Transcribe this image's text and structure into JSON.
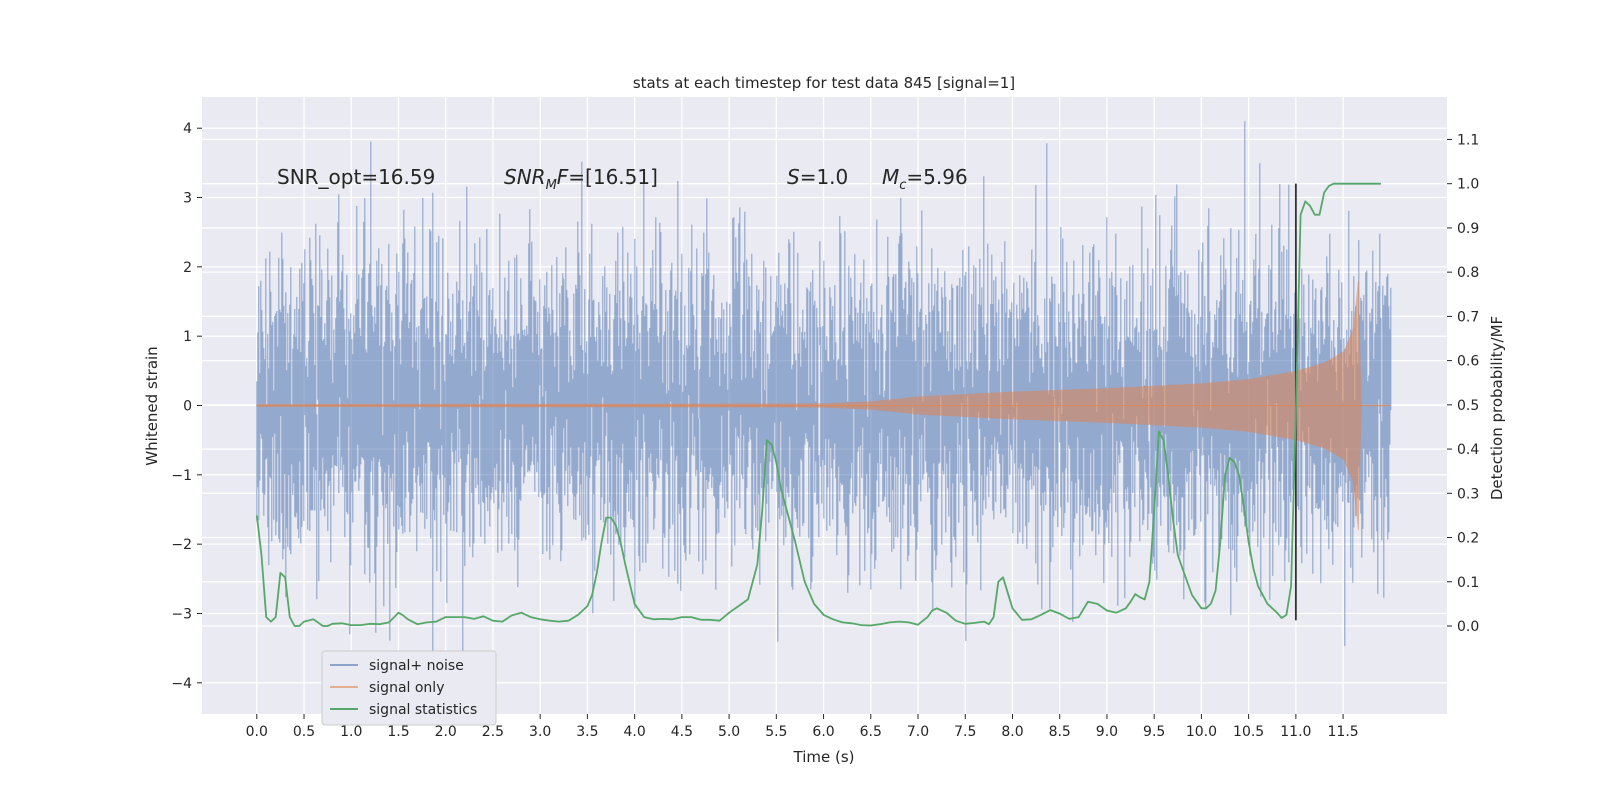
{
  "chart_data": {
    "type": "line",
    "title": "stats at each timestep for test data 845 [signal=1]",
    "xlabel": "Time (s)",
    "ylabel": "Whitened strain",
    "ylabel_right": "Detection probability/MF",
    "xlim": [
      -0.58,
      12.6
    ],
    "ylim": [
      -4.45,
      4.45
    ],
    "ylim_right": [
      -0.199,
      1.196
    ],
    "x_ticks": [
      0.0,
      0.5,
      1.0,
      1.5,
      2.0,
      2.5,
      3.0,
      3.5,
      4.0,
      4.5,
      5.0,
      5.5,
      6.0,
      6.5,
      7.0,
      7.5,
      8.0,
      8.5,
      9.0,
      9.5,
      10.0,
      10.5,
      11.0,
      11.5
    ],
    "x_tick_labels": [
      "0.0",
      "0.5",
      "1.0",
      "1.5",
      "2.0",
      "2.5",
      "3.0",
      "3.5",
      "4.0",
      "4.5",
      "5.0",
      "5.5",
      "6.0",
      "6.5",
      "7.0",
      "7.5",
      "8.0",
      "8.5",
      "9.0",
      "9.5",
      "10.0",
      "10.5",
      "11.0",
      "11.5"
    ],
    "y_ticks": [
      -4,
      -3,
      -2,
      -1,
      0,
      1,
      2,
      3,
      4
    ],
    "y_tick_labels": [
      "−4",
      "−3",
      "−2",
      "−1",
      "0",
      "1",
      "2",
      "3",
      "4"
    ],
    "y_ticks_right": [
      0.0,
      0.1,
      0.2,
      0.3,
      0.4,
      0.5,
      0.6,
      0.7,
      0.8,
      0.9,
      1.0,
      1.1
    ],
    "y_tick_labels_right": [
      "0.0",
      "0.1",
      "0.2",
      "0.3",
      "0.4",
      "0.5",
      "0.6",
      "0.7",
      "0.8",
      "0.9",
      "1.0",
      "1.1"
    ],
    "annotations": [
      {
        "label": "SNR_opt=16.59",
        "x": 0.2,
        "y": 3.3
      },
      {
        "label": "SNR_MF=[16.51]",
        "x": 2.62,
        "y": 3.3
      },
      {
        "label": "S=1.0",
        "x": 5.6,
        "y": 3.3
      },
      {
        "label": "M_c=5.96",
        "x": 6.6,
        "y": 3.3
      }
    ],
    "vertical_marker": {
      "x": 11.0,
      "y_range": [
        -3.1,
        3.2
      ],
      "color": "#333333"
    },
    "series": [
      {
        "name": "signal+ noise",
        "color": "#4c72b0",
        "opacity": 0.5,
        "description": "whitened noisy strain, approximately N(0,1) on [0, 12]",
        "t_range": [
          0.0,
          12.0
        ],
        "sigma": 1.0,
        "observed_range": [
          -4.0,
          4.1
        ]
      },
      {
        "name": "signal only",
        "color": "#dd8452",
        "opacity": 0.5,
        "description": "chirp waveform, amplitude envelope (t, amplitude)",
        "envelope": [
          [
            0.0,
            0.02
          ],
          [
            6.0,
            0.03
          ],
          [
            6.5,
            0.06
          ],
          [
            7.0,
            0.13
          ],
          [
            8.0,
            0.2
          ],
          [
            9.0,
            0.25
          ],
          [
            10.0,
            0.32
          ],
          [
            10.5,
            0.38
          ],
          [
            11.0,
            0.5
          ],
          [
            11.3,
            0.62
          ],
          [
            11.5,
            0.78
          ],
          [
            11.6,
            1.1
          ],
          [
            11.66,
            1.9
          ],
          [
            11.69,
            0.0
          ],
          [
            12.0,
            0.0
          ]
        ]
      },
      {
        "name": "signal statistics",
        "color": "#55a868",
        "axis": "right",
        "x": [
          0.0,
          0.05,
          0.1,
          0.15,
          0.2,
          0.25,
          0.3,
          0.35,
          0.4,
          0.45,
          0.5,
          0.6,
          0.7,
          0.75,
          0.8,
          0.9,
          1.0,
          1.1,
          1.2,
          1.3,
          1.4,
          1.5,
          1.55,
          1.6,
          1.7,
          1.8,
          1.9,
          2.0,
          2.1,
          2.2,
          2.3,
          2.4,
          2.5,
          2.6,
          2.7,
          2.8,
          2.9,
          3.0,
          3.1,
          3.2,
          3.3,
          3.4,
          3.5,
          3.55,
          3.6,
          3.65,
          3.7,
          3.75,
          3.8,
          3.85,
          3.9,
          4.0,
          4.1,
          4.2,
          4.3,
          4.4,
          4.5,
          4.6,
          4.7,
          4.8,
          4.9,
          5.0,
          5.1,
          5.2,
          5.3,
          5.35,
          5.4,
          5.45,
          5.5,
          5.55,
          5.6,
          5.7,
          5.8,
          5.9,
          6.0,
          6.1,
          6.2,
          6.3,
          6.4,
          6.5,
          6.6,
          6.7,
          6.8,
          6.9,
          7.0,
          7.1,
          7.15,
          7.2,
          7.3,
          7.4,
          7.5,
          7.6,
          7.7,
          7.75,
          7.8,
          7.85,
          7.9,
          8.0,
          8.1,
          8.2,
          8.3,
          8.4,
          8.5,
          8.6,
          8.7,
          8.8,
          8.9,
          9.0,
          9.1,
          9.2,
          9.25,
          9.3,
          9.35,
          9.4,
          9.45,
          9.5,
          9.55,
          9.6,
          9.65,
          9.7,
          9.75,
          9.8,
          9.9,
          10.0,
          10.05,
          10.1,
          10.15,
          10.2,
          10.25,
          10.3,
          10.35,
          10.4,
          10.45,
          10.5,
          10.55,
          10.6,
          10.7,
          10.8,
          10.85,
          10.9,
          10.95,
          11.0,
          11.05,
          11.1,
          11.15,
          11.2,
          11.25,
          11.3,
          11.35,
          11.4,
          11.5,
          11.6,
          11.7,
          11.8,
          11.9
        ],
        "y": [
          0.25,
          0.16,
          0.02,
          0.01,
          0.02,
          0.12,
          0.11,
          0.02,
          0.0,
          0.0,
          0.01,
          0.015,
          0.0,
          0.0,
          0.005,
          0.006,
          0.002,
          0.002,
          0.005,
          0.004,
          0.008,
          0.03,
          0.024,
          0.015,
          0.004,
          0.008,
          0.01,
          0.02,
          0.02,
          0.02,
          0.016,
          0.022,
          0.012,
          0.01,
          0.024,
          0.03,
          0.02,
          0.015,
          0.012,
          0.01,
          0.012,
          0.025,
          0.045,
          0.07,
          0.12,
          0.19,
          0.245,
          0.245,
          0.228,
          0.19,
          0.14,
          0.05,
          0.02,
          0.015,
          0.016,
          0.015,
          0.02,
          0.02,
          0.014,
          0.014,
          0.012,
          0.03,
          0.045,
          0.06,
          0.14,
          0.26,
          0.42,
          0.41,
          0.37,
          0.31,
          0.27,
          0.19,
          0.1,
          0.05,
          0.025,
          0.015,
          0.008,
          0.006,
          0.002,
          0.001,
          0.004,
          0.008,
          0.01,
          0.008,
          0.003,
          0.02,
          0.035,
          0.04,
          0.03,
          0.012,
          0.005,
          0.007,
          0.01,
          0.004,
          0.02,
          0.1,
          0.11,
          0.04,
          0.014,
          0.015,
          0.025,
          0.036,
          0.028,
          0.016,
          0.02,
          0.055,
          0.05,
          0.035,
          0.03,
          0.04,
          0.055,
          0.072,
          0.065,
          0.06,
          0.1,
          0.26,
          0.44,
          0.42,
          0.34,
          0.24,
          0.16,
          0.13,
          0.07,
          0.04,
          0.04,
          0.05,
          0.08,
          0.19,
          0.34,
          0.38,
          0.37,
          0.34,
          0.27,
          0.19,
          0.13,
          0.09,
          0.05,
          0.03,
          0.018,
          0.025,
          0.09,
          0.49,
          0.93,
          0.96,
          0.95,
          0.93,
          0.93,
          0.98,
          0.995,
          1.0,
          1.0,
          1.0,
          1.0,
          1.0,
          1.0
        ]
      }
    ],
    "legend": {
      "location": "lower-left",
      "labels": [
        "signal+ noise",
        "signal only",
        "signal statistics"
      ]
    },
    "grid": true
  }
}
